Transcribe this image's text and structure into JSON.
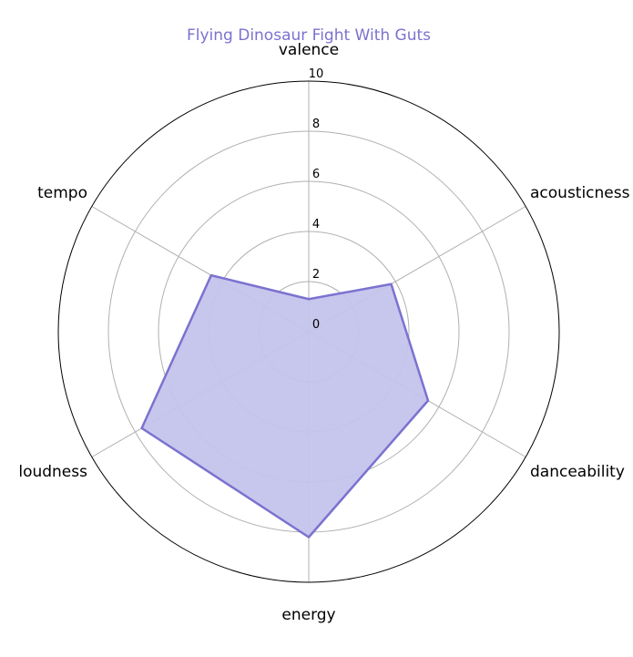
{
  "chart_data": {
    "type": "radar",
    "title": "Flying Dinosaur Fight With Guts",
    "axes": [
      "valence",
      "acousticness",
      "danceability",
      "energy",
      "loudness",
      "tempo"
    ],
    "series": [
      {
        "values": [
          1.3,
          3.8,
          5.5,
          8.2,
          7.7,
          4.5
        ]
      }
    ],
    "rlim": [
      0,
      10
    ],
    "rticks": [
      "0",
      "2",
      "4",
      "6",
      "8",
      "10"
    ],
    "grid": true,
    "colors": {
      "accent": "#7b72cf",
      "fill": "#c4c3ec",
      "grid": "#b0b0b0",
      "outer": "#000000"
    }
  }
}
